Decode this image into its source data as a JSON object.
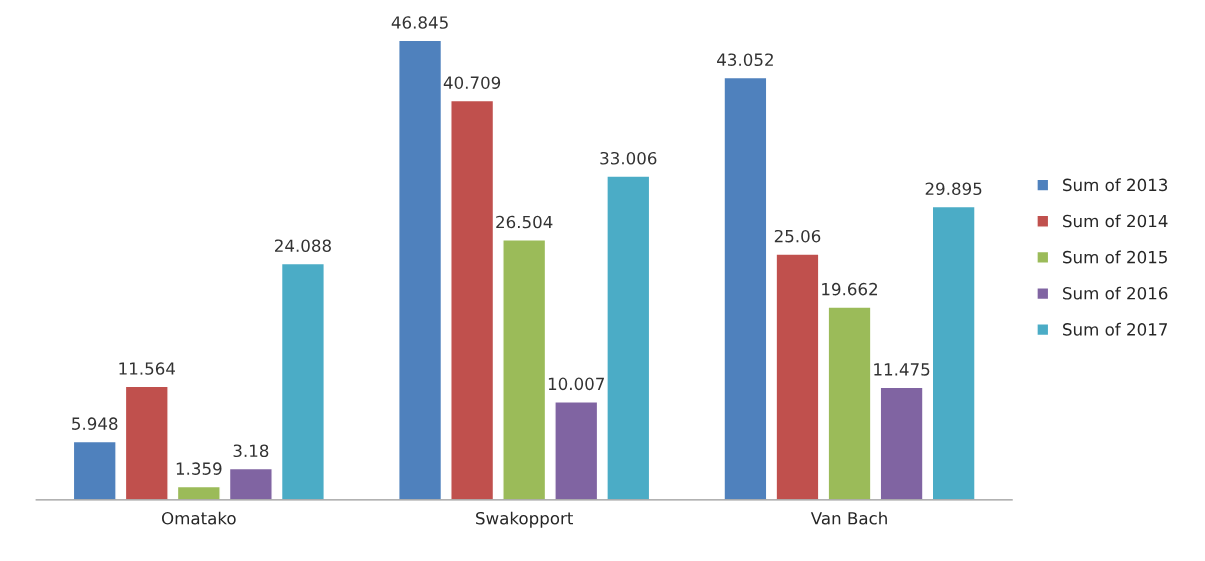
{
  "chart_data": {
    "type": "bar",
    "categories": [
      "Omatako",
      "Swakopport",
      "Van Bach"
    ],
    "series": [
      {
        "name": "Sum of 2013",
        "color": "#4f81bd",
        "values": [
          5.948,
          46.845,
          43.052
        ]
      },
      {
        "name": "Sum of 2014",
        "color": "#c0504d",
        "values": [
          11.564,
          40.709,
          25.06
        ]
      },
      {
        "name": "Sum of 2015",
        "color": "#9bbb59",
        "values": [
          1.359,
          26.504,
          19.662
        ]
      },
      {
        "name": "Sum of 2016",
        "color": "#8064a2",
        "values": [
          3.18,
          10.007,
          11.475
        ]
      },
      {
        "name": "Sum of 2017",
        "color": "#4bacc6",
        "values": [
          24.088,
          33.006,
          29.895
        ]
      }
    ],
    "data_labels": true,
    "legend": "right",
    "grid": false,
    "tick_labels": "x"
  }
}
